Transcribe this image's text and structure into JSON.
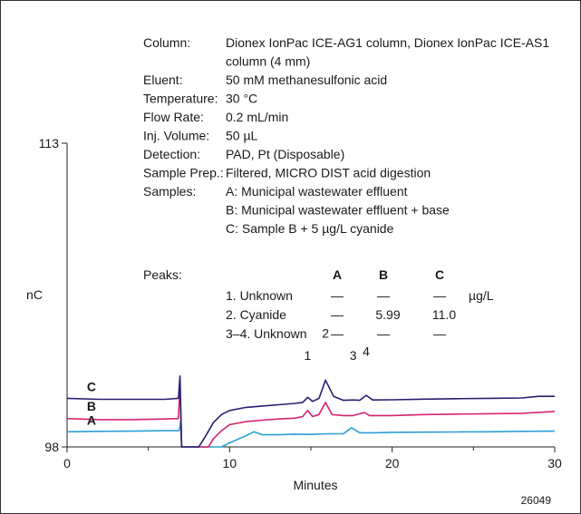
{
  "figure_id": "26049",
  "chart_data": {
    "type": "line",
    "title": "",
    "xlabel": "Minutes",
    "ylabel": "nC",
    "xlim": [
      0,
      30
    ],
    "ylim": [
      98,
      113
    ],
    "xticks": [
      0,
      10,
      20,
      30
    ],
    "yticks": [
      98,
      113
    ],
    "colors": {
      "A": "#2b9fd6",
      "B": "#d6246e",
      "C": "#252070"
    },
    "conditions": [
      {
        "label": "Column:",
        "value": "Dionex IonPac ICE-AG1 column, Dionex IonPac ICE-AS1"
      },
      {
        "label": "",
        "value": "column (4 mm)"
      },
      {
        "label": "Eluent:",
        "value": "50 mM methanesulfonic acid"
      },
      {
        "label": "Temperature:",
        "value": "30 °C"
      },
      {
        "label": "Flow Rate:",
        "value": "0.2 mL/min"
      },
      {
        "label": "Inj. Volume:",
        "value": "50 µL"
      },
      {
        "label": "Detection:",
        "value": "PAD, Pt (Disposable)"
      },
      {
        "label": "Sample Prep.:",
        "value": "Filtered, MICRO DIST acid digestion"
      },
      {
        "label": "Samples:",
        "value": "A: Municipal wastewater effluent"
      },
      {
        "label": "",
        "value": "B: Municipal wastewater effluent + base"
      },
      {
        "label": "",
        "value": "C: Sample B + 5 µg/L cyanide"
      }
    ],
    "peaks_table": {
      "label": "Peaks:",
      "columns": [
        "A",
        "B",
        "C"
      ],
      "unit": "µg/L",
      "rows": [
        {
          "name": "1. Unknown",
          "A": "—",
          "B": "—",
          "C": "—"
        },
        {
          "name": "2. Cyanide",
          "A": "—",
          "B": "5.99",
          "C": "11.0"
        },
        {
          "name": "3–4. Unknown",
          "A": "—",
          "B": "—",
          "C": "—"
        }
      ]
    },
    "peak_labels": [
      {
        "text": "1",
        "x": 14.8,
        "y": 102.3
      },
      {
        "text": "2",
        "x": 15.9,
        "y": 103.4
      },
      {
        "text": "3",
        "x": 17.6,
        "y": 102.3
      },
      {
        "text": "4",
        "x": 18.4,
        "y": 102.5
      }
    ],
    "series": [
      {
        "name": "A",
        "points": [
          [
            0,
            98.75
          ],
          [
            2,
            98.77
          ],
          [
            4,
            98.78
          ],
          [
            6,
            98.8
          ],
          [
            6.9,
            98.8
          ],
          [
            7,
            99.3
          ],
          [
            7.05,
            98
          ],
          [
            9.5,
            98
          ],
          [
            10,
            98.2
          ],
          [
            11,
            98.55
          ],
          [
            11.5,
            98.75
          ],
          [
            12,
            98.6
          ],
          [
            13,
            98.6
          ],
          [
            14,
            98.63
          ],
          [
            15,
            98.62
          ],
          [
            16,
            98.65
          ],
          [
            17,
            98.65
          ],
          [
            17.5,
            98.95
          ],
          [
            18,
            98.7
          ],
          [
            19,
            98.7
          ],
          [
            20,
            98.72
          ],
          [
            22,
            98.73
          ],
          [
            24,
            98.74
          ],
          [
            26,
            98.75
          ],
          [
            28,
            98.77
          ],
          [
            30,
            98.78
          ]
        ]
      },
      {
        "name": "B",
        "points": [
          [
            0,
            99.4
          ],
          [
            2,
            99.35
          ],
          [
            4,
            99.35
          ],
          [
            6,
            99.38
          ],
          [
            6.85,
            99.4
          ],
          [
            6.95,
            101.0
          ],
          [
            7.05,
            98
          ],
          [
            8.7,
            98
          ],
          [
            9,
            98.4
          ],
          [
            9.5,
            98.8
          ],
          [
            10,
            99.1
          ],
          [
            11,
            99.25
          ],
          [
            12,
            99.32
          ],
          [
            13,
            99.38
          ],
          [
            14,
            99.42
          ],
          [
            14.5,
            99.5
          ],
          [
            14.8,
            99.8
          ],
          [
            15.1,
            99.5
          ],
          [
            15.5,
            99.6
          ],
          [
            15.9,
            100.2
          ],
          [
            16.3,
            99.6
          ],
          [
            17,
            99.55
          ],
          [
            17.6,
            99.55
          ],
          [
            18.3,
            99.7
          ],
          [
            18.6,
            99.55
          ],
          [
            20,
            99.55
          ],
          [
            22,
            99.6
          ],
          [
            24,
            99.62
          ],
          [
            26,
            99.64
          ],
          [
            28,
            99.66
          ],
          [
            30,
            99.75
          ]
        ]
      },
      {
        "name": "C",
        "points": [
          [
            0,
            100.4
          ],
          [
            2,
            100.35
          ],
          [
            4,
            100.35
          ],
          [
            6,
            100.35
          ],
          [
            6.85,
            100.4
          ],
          [
            6.95,
            101.5
          ],
          [
            7.05,
            98
          ],
          [
            8.1,
            98
          ],
          [
            8.5,
            98.5
          ],
          [
            9,
            99.2
          ],
          [
            9.5,
            99.6
          ],
          [
            10,
            99.8
          ],
          [
            11,
            99.95
          ],
          [
            12,
            100.02
          ],
          [
            13,
            100.08
          ],
          [
            14,
            100.15
          ],
          [
            14.5,
            100.2
          ],
          [
            14.8,
            100.45
          ],
          [
            15.1,
            100.25
          ],
          [
            15.5,
            100.4
          ],
          [
            15.9,
            101.3
          ],
          [
            16.4,
            100.5
          ],
          [
            17,
            100.3
          ],
          [
            17.6,
            100.32
          ],
          [
            18,
            100.3
          ],
          [
            18.4,
            100.55
          ],
          [
            18.8,
            100.32
          ],
          [
            20,
            100.33
          ],
          [
            22,
            100.36
          ],
          [
            24,
            100.38
          ],
          [
            26,
            100.4
          ],
          [
            28,
            100.42
          ],
          [
            29,
            100.5
          ],
          [
            30,
            100.5
          ]
        ]
      }
    ],
    "trace_labels": [
      {
        "text": "C",
        "x": 1.5,
        "y": 100.75
      },
      {
        "text": "B",
        "x": 1.5,
        "y": 99.8
      },
      {
        "text": "A",
        "x": 1.5,
        "y": 99.1
      }
    ]
  }
}
